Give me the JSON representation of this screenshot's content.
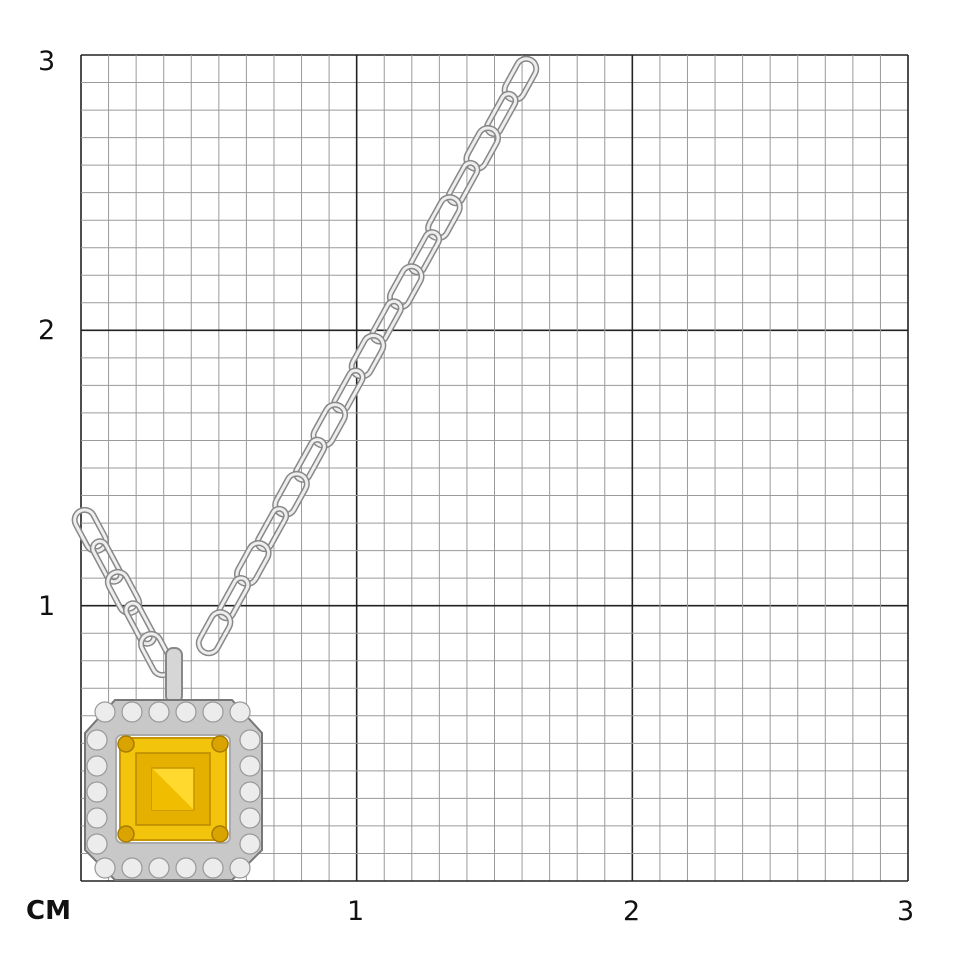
{
  "scale": {
    "unit": "CM",
    "x_ticks": [
      "1",
      "2",
      "3"
    ],
    "y_ticks": [
      "1",
      "2",
      "3"
    ],
    "minor_divisions_per_unit": 10
  },
  "colors": {
    "grid_major": "#222222",
    "grid_minor": "#9a9a9a",
    "gem": "#f2c40c",
    "gold_prong": "#d9a400",
    "metal": "#c8c8c8"
  },
  "subject": "yellow-square-gem-pendant-with-halo-on-chain"
}
